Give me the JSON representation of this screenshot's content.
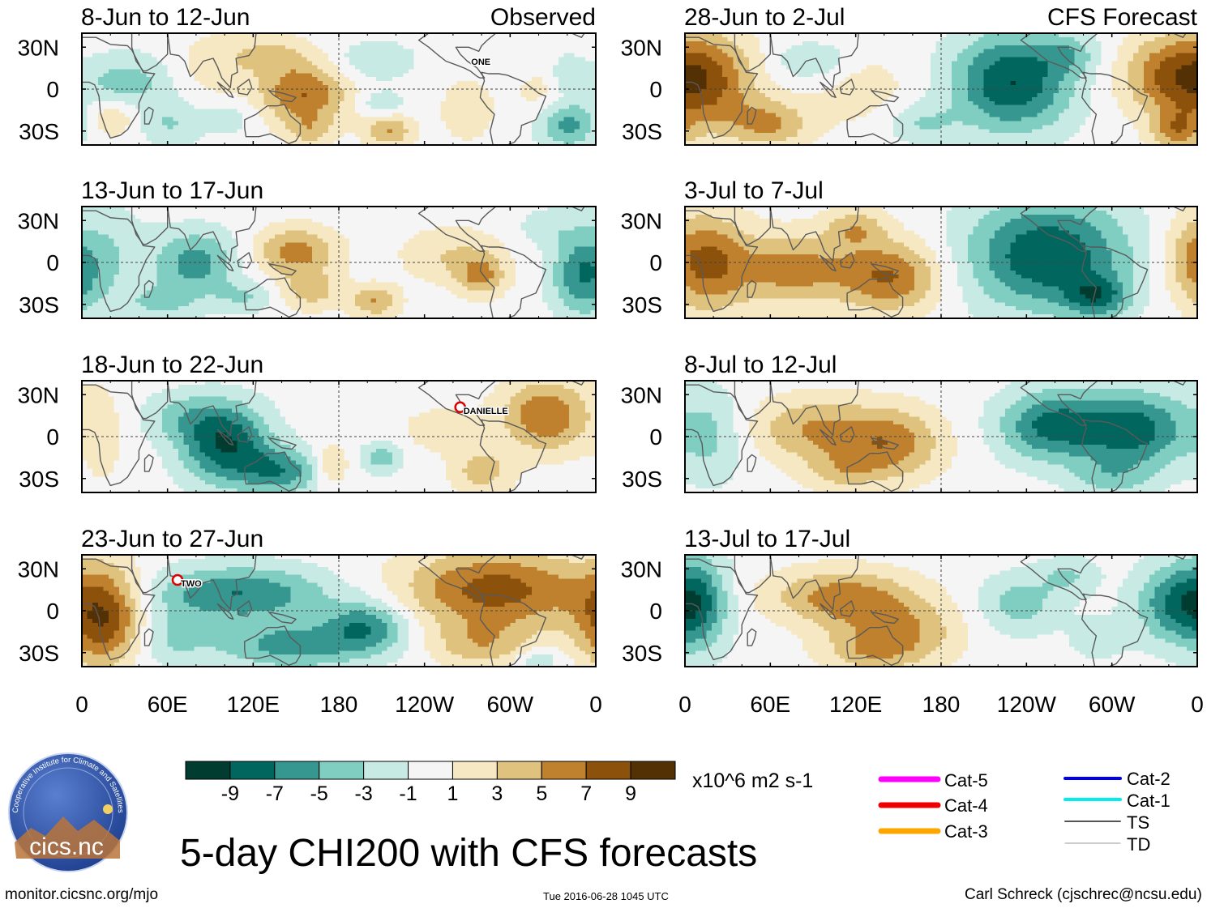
{
  "chart_data": {
    "type": "heatmap",
    "title": "5-day CHI200 with CFS forecasts",
    "variable": "CHI200 anomaly (velocity potential, 200 hPa)",
    "units": "x10^6 m2 s-1",
    "x_axis": {
      "range_deg_east": [
        0,
        360
      ],
      "ticks": [
        "0",
        "60E",
        "120E",
        "180",
        "120W",
        "60W",
        "0"
      ],
      "tick_values": [
        0,
        60,
        120,
        180,
        240,
        300,
        360
      ]
    },
    "y_axis": {
      "range_deg_north": [
        -40,
        40
      ],
      "ticks": [
        "30N",
        "0",
        "30S"
      ],
      "tick_values": [
        30,
        0,
        -30
      ]
    },
    "color_scale": {
      "levels": [
        "-9",
        "-7",
        "-5",
        "-3",
        "-1",
        "1",
        "3",
        "5",
        "7",
        "9"
      ],
      "level_values": [
        -9,
        -7,
        -5,
        -3,
        -1,
        1,
        3,
        5,
        7,
        9
      ],
      "colors": [
        "#003c30",
        "#01665e",
        "#35978f",
        "#80cdc1",
        "#c7eae5",
        "#f5f5f5",
        "#f6e8c3",
        "#dfc27d",
        "#bf812d",
        "#8c510a",
        "#543005"
      ]
    },
    "panels": [
      {
        "id": "obs1",
        "column": "left",
        "row": 1,
        "source": "Observed",
        "title": "8-Jun to 12-Jun",
        "label": "Observed",
        "storms": [
          {
            "name": "ONE",
            "lon": 275,
            "lat": 22,
            "marker": false
          }
        ],
        "blobs": [
          {
            "lon": 30,
            "lat": 5,
            "sx": 25,
            "sy": 14,
            "v": -4
          },
          {
            "lon": 22,
            "lat": -20,
            "sx": 12,
            "sy": 10,
            "v": 3
          },
          {
            "lon": 62,
            "lat": -25,
            "sx": 15,
            "sy": 12,
            "v": -3
          },
          {
            "lon": 90,
            "lat": 15,
            "sx": 20,
            "sy": 18,
            "v": 2
          },
          {
            "lon": 105,
            "lat": -20,
            "sx": 15,
            "sy": 10,
            "v": -2
          },
          {
            "lon": 155,
            "lat": -3,
            "sx": 22,
            "sy": 16,
            "v": 7
          },
          {
            "lon": 130,
            "lat": 25,
            "sx": 20,
            "sy": 10,
            "v": 3
          },
          {
            "lon": 160,
            "lat": -30,
            "sx": 12,
            "sy": 8,
            "v": 3
          },
          {
            "lon": 205,
            "lat": 20,
            "sx": 20,
            "sy": 10,
            "v": -3
          },
          {
            "lon": 210,
            "lat": -10,
            "sx": 10,
            "sy": 6,
            "v": -3
          },
          {
            "lon": 215,
            "lat": -30,
            "sx": 12,
            "sy": 8,
            "v": 5
          },
          {
            "lon": 270,
            "lat": -15,
            "sx": 15,
            "sy": 18,
            "v": 2
          },
          {
            "lon": 325,
            "lat": -5,
            "sx": 15,
            "sy": 15,
            "v": 2
          },
          {
            "lon": 340,
            "lat": -25,
            "sx": 15,
            "sy": 12,
            "v": -6
          },
          {
            "lon": 340,
            "lat": 10,
            "sx": 8,
            "sy": 10,
            "v": -3
          }
        ]
      },
      {
        "id": "obs2",
        "column": "left",
        "row": 2,
        "source": "Observed",
        "title": "13-Jun to 17-Jun",
        "label": "",
        "storms": [],
        "blobs": [
          {
            "lon": 15,
            "lat": 5,
            "sx": 22,
            "sy": 25,
            "v": -3
          },
          {
            "lon": 80,
            "lat": 0,
            "sx": 20,
            "sy": 16,
            "v": -6
          },
          {
            "lon": 55,
            "lat": -30,
            "sx": 20,
            "sy": 10,
            "v": -3
          },
          {
            "lon": 115,
            "lat": -25,
            "sx": 15,
            "sy": 8,
            "v": -3
          },
          {
            "lon": 150,
            "lat": 8,
            "sx": 20,
            "sy": 12,
            "v": 6
          },
          {
            "lon": 160,
            "lat": -20,
            "sx": 15,
            "sy": 10,
            "v": 4
          },
          {
            "lon": 205,
            "lat": -28,
            "sx": 12,
            "sy": 8,
            "v": 5
          },
          {
            "lon": 260,
            "lat": 5,
            "sx": 25,
            "sy": 14,
            "v": 3
          },
          {
            "lon": 280,
            "lat": -10,
            "sx": 12,
            "sy": 10,
            "v": 5
          },
          {
            "lon": 350,
            "lat": -10,
            "sx": 15,
            "sy": 20,
            "v": -6
          },
          {
            "lon": 325,
            "lat": 25,
            "sx": 15,
            "sy": 10,
            "v": -2
          }
        ]
      },
      {
        "id": "obs3",
        "column": "left",
        "row": 3,
        "source": "Observed",
        "title": "18-Jun to 22-Jun",
        "label": "",
        "storms": [
          {
            "name": "DANIELLE",
            "lon": 265,
            "lat": 21,
            "marker": true
          }
        ],
        "blobs": [
          {
            "lon": 100,
            "lat": -5,
            "sx": 22,
            "sy": 20,
            "v": -9
          },
          {
            "lon": 70,
            "lat": 15,
            "sx": 20,
            "sy": 12,
            "v": -3
          },
          {
            "lon": 140,
            "lat": -25,
            "sx": 20,
            "sy": 12,
            "v": -6
          },
          {
            "lon": 15,
            "lat": 0,
            "sx": 10,
            "sy": 25,
            "v": 2
          },
          {
            "lon": 175,
            "lat": -20,
            "sx": 8,
            "sy": 10,
            "v": 4
          },
          {
            "lon": 210,
            "lat": -15,
            "sx": 10,
            "sy": 8,
            "v": -4
          },
          {
            "lon": 325,
            "lat": 15,
            "sx": 22,
            "sy": 18,
            "v": 7
          },
          {
            "lon": 280,
            "lat": -25,
            "sx": 15,
            "sy": 12,
            "v": 4
          },
          {
            "lon": 250,
            "lat": 5,
            "sx": 20,
            "sy": 12,
            "v": 2
          }
        ]
      },
      {
        "id": "obs4",
        "column": "left",
        "row": 4,
        "source": "Observed",
        "title": "23-Jun to 27-Jun",
        "label": "",
        "storms": [
          {
            "name": "TWO",
            "lon": 67,
            "lat": 22,
            "marker": true
          }
        ],
        "blobs": [
          {
            "lon": 15,
            "lat": -5,
            "sx": 20,
            "sy": 25,
            "v": 9
          },
          {
            "lon": 110,
            "lat": 12,
            "sx": 45,
            "sy": 14,
            "v": -7
          },
          {
            "lon": 150,
            "lat": -25,
            "sx": 40,
            "sy": 12,
            "v": -6
          },
          {
            "lon": 200,
            "lat": -10,
            "sx": 20,
            "sy": 12,
            "v": -6
          },
          {
            "lon": 290,
            "lat": 15,
            "sx": 45,
            "sy": 20,
            "v": 8
          },
          {
            "lon": 280,
            "lat": -25,
            "sx": 25,
            "sy": 12,
            "v": 4
          },
          {
            "lon": 320,
            "lat": -35,
            "sx": 12,
            "sy": 6,
            "v": -3
          },
          {
            "lon": 60,
            "lat": -20,
            "sx": 20,
            "sy": 15,
            "v": -3
          }
        ]
      },
      {
        "id": "cfs1",
        "column": "right",
        "row": 1,
        "source": "CFS Forecast",
        "title": "28-Jun to 2-Jul",
        "label": "CFS Forecast",
        "storms": [],
        "blobs": [
          {
            "lon": 15,
            "lat": 5,
            "sx": 25,
            "sy": 25,
            "v": 7
          },
          {
            "lon": 60,
            "lat": -25,
            "sx": 20,
            "sy": 12,
            "v": 5
          },
          {
            "lon": 90,
            "lat": 20,
            "sx": 20,
            "sy": 10,
            "v": -3
          },
          {
            "lon": 125,
            "lat": 0,
            "sx": 25,
            "sy": 20,
            "v": 2
          },
          {
            "lon": 165,
            "lat": -25,
            "sx": 18,
            "sy": 10,
            "v": -3
          },
          {
            "lon": 230,
            "lat": 5,
            "sx": 30,
            "sy": 25,
            "v": -9
          },
          {
            "lon": 270,
            "lat": 25,
            "sx": 15,
            "sy": 10,
            "v": -3
          },
          {
            "lon": 340,
            "lat": 10,
            "sx": 25,
            "sy": 20,
            "v": 6
          },
          {
            "lon": 345,
            "lat": -30,
            "sx": 12,
            "sy": 10,
            "v": 5
          }
        ]
      },
      {
        "id": "cfs2",
        "column": "right",
        "row": 2,
        "source": "CFS Forecast",
        "title": "3-Jul to 7-Jul",
        "label": "",
        "storms": [],
        "blobs": [
          {
            "lon": 15,
            "lat": 0,
            "sx": 20,
            "sy": 25,
            "v": 7
          },
          {
            "lon": 75,
            "lat": -5,
            "sx": 30,
            "sy": 18,
            "v": 6
          },
          {
            "lon": 145,
            "lat": -10,
            "sx": 25,
            "sy": 18,
            "v": 7
          },
          {
            "lon": 120,
            "lat": 25,
            "sx": 15,
            "sy": 10,
            "v": 4
          },
          {
            "lon": 255,
            "lat": 5,
            "sx": 40,
            "sy": 28,
            "v": -9
          },
          {
            "lon": 290,
            "lat": -25,
            "sx": 15,
            "sy": 10,
            "v": -6
          },
          {
            "lon": 350,
            "lat": 5,
            "sx": 12,
            "sy": 20,
            "v": 2
          }
        ]
      },
      {
        "id": "cfs3",
        "column": "right",
        "row": 3,
        "source": "CFS Forecast",
        "title": "8-Jul to 12-Jul",
        "label": "",
        "storms": [],
        "blobs": [
          {
            "lon": 20,
            "lat": 0,
            "sx": 15,
            "sy": 25,
            "v": -3
          },
          {
            "lon": 90,
            "lat": 5,
            "sx": 30,
            "sy": 16,
            "v": 5
          },
          {
            "lon": 145,
            "lat": -5,
            "sx": 25,
            "sy": 18,
            "v": 6
          },
          {
            "lon": 110,
            "lat": -25,
            "sx": 20,
            "sy": 10,
            "v": 3
          },
          {
            "lon": 255,
            "lat": 8,
            "sx": 25,
            "sy": 18,
            "v": -7
          },
          {
            "lon": 315,
            "lat": 5,
            "sx": 30,
            "sy": 20,
            "v": -8
          },
          {
            "lon": 300,
            "lat": -30,
            "sx": 20,
            "sy": 10,
            "v": -3
          }
        ]
      },
      {
        "id": "cfs4",
        "column": "right",
        "row": 4,
        "source": "CFS Forecast",
        "title": "13-Jul to 17-Jul",
        "label": "",
        "storms": [],
        "blobs": [
          {
            "lon": 10,
            "lat": 5,
            "sx": 15,
            "sy": 25,
            "v": -6
          },
          {
            "lon": 110,
            "lat": 10,
            "sx": 35,
            "sy": 14,
            "v": 6
          },
          {
            "lon": 150,
            "lat": -15,
            "sx": 30,
            "sy": 16,
            "v": 5
          },
          {
            "lon": 130,
            "lat": -30,
            "sx": 25,
            "sy": 10,
            "v": 3
          },
          {
            "lon": 235,
            "lat": 5,
            "sx": 20,
            "sy": 15,
            "v": -4
          },
          {
            "lon": 270,
            "lat": 25,
            "sx": 15,
            "sy": 10,
            "v": -3
          },
          {
            "lon": 345,
            "lat": 5,
            "sx": 20,
            "sy": 20,
            "v": -7
          },
          {
            "lon": 290,
            "lat": -20,
            "sx": 15,
            "sy": 12,
            "v": -2
          }
        ]
      }
    ]
  },
  "units_label": "x10^6 m2 s-1",
  "track_legend": [
    {
      "name": "Cat-5",
      "color": "#ff00ff",
      "weight": "heavy"
    },
    {
      "name": "Cat-4",
      "color": "#ee0000",
      "weight": "heavy"
    },
    {
      "name": "Cat-3",
      "color": "#ffa500",
      "weight": "heavy"
    },
    {
      "name": "Cat-2",
      "color": "#0000ee",
      "weight": "medium"
    },
    {
      "name": "Cat-1",
      "color": "#00eeee",
      "weight": "medium"
    },
    {
      "name": "TS",
      "color": "#555555",
      "weight": "thin"
    },
    {
      "name": "TD",
      "color": "#999999",
      "weight": "hairline"
    }
  ],
  "logo": {
    "ring_text": "Cooperative Institute for Climate and Satellites",
    "wordmark": "cics.nc"
  },
  "footer": {
    "left": "monitor.cicsnc.org/mjo",
    "center": "Tue 2016-06-28 1045 UTC",
    "right": "Carl Schreck (cjschrec@ncsu.edu)"
  }
}
